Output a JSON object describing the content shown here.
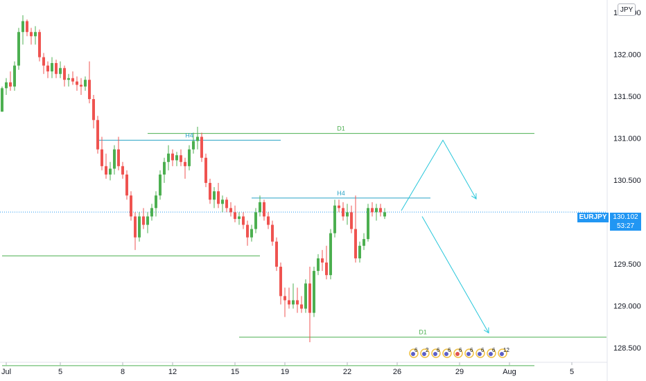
{
  "chart_data": {
    "type": "candlestick",
    "symbol": "EURJPY",
    "currency": "JPY",
    "last_price": "130.102",
    "countdown": "53:27",
    "y_axis": {
      "range": [
        128.24,
        132.78
      ],
      "ticks": [
        "132.500",
        "132.000",
        "131.500",
        "131.000",
        "130.500",
        "130.000",
        "129.500",
        "129.000",
        "128.500"
      ]
    },
    "x_axis": {
      "ticks": [
        {
          "label": "Jul",
          "bar": 1
        },
        {
          "label": "5",
          "bar": 14
        },
        {
          "label": "8",
          "bar": 29
        },
        {
          "label": "12",
          "bar": 41
        },
        {
          "label": "15",
          "bar": 56
        },
        {
          "label": "19",
          "bar": 68
        },
        {
          "label": "22",
          "bar": 83
        },
        {
          "label": "26",
          "bar": 95
        },
        {
          "label": "29",
          "bar": 110
        },
        {
          "label": "Aug",
          "bar": 122
        },
        {
          "label": "5",
          "bar": 137
        }
      ]
    },
    "levels": [
      {
        "label": "D1",
        "price": 131.04,
        "from_bar": 35,
        "to_bar": 128,
        "color": "#4caf50"
      },
      {
        "label": "H4",
        "price": 130.96,
        "from_bar": 23,
        "to_bar": 67,
        "color": "#26a2c5"
      },
      {
        "label": "",
        "price": 129.58,
        "from_bar": 0,
        "to_bar": 62,
        "color": "#4caf50"
      },
      {
        "label": "H4",
        "price": 130.27,
        "from_bar": 60,
        "to_bar": 103,
        "color": "#26a2c5"
      },
      {
        "label": "D1",
        "price": 128.61,
        "from_bar": 57,
        "to_bar": 152,
        "color": "#4caf50"
      },
      {
        "label": "",
        "price": 128.27,
        "from_bar": 0,
        "to_bar": 128,
        "color": "#4caf50"
      }
    ],
    "scenarios": [
      {
        "path": [
          [
            96,
            130.12
          ],
          [
            106,
            130.96
          ],
          [
            114,
            130.26
          ]
        ],
        "color": "#26c6da"
      },
      {
        "path": [
          [
            101,
            130.05
          ],
          [
            117,
            128.66
          ]
        ],
        "color": "#26c6da"
      }
    ],
    "candles": [
      [
        131.3,
        131.6,
        131.3,
        131.58
      ],
      [
        131.58,
        131.7,
        131.5,
        131.65
      ],
      [
        131.65,
        131.78,
        131.55,
        131.6
      ],
      [
        131.6,
        131.9,
        131.55,
        131.85
      ],
      [
        131.85,
        132.3,
        131.8,
        132.25
      ],
      [
        132.25,
        132.45,
        132.1,
        132.38
      ],
      [
        132.38,
        132.4,
        132.2,
        132.25
      ],
      [
        132.25,
        132.3,
        132.1,
        132.2
      ],
      [
        132.2,
        132.32,
        132.1,
        132.25
      ],
      [
        132.25,
        132.28,
        131.9,
        131.95
      ],
      [
        131.95,
        132.0,
        131.75,
        131.85
      ],
      [
        131.85,
        131.9,
        131.7,
        131.78
      ],
      [
        131.78,
        131.95,
        131.7,
        131.88
      ],
      [
        131.88,
        131.92,
        131.7,
        131.75
      ],
      [
        131.75,
        131.9,
        131.7,
        131.82
      ],
      [
        131.82,
        131.85,
        131.6,
        131.68
      ],
      [
        131.68,
        131.75,
        131.6,
        131.7
      ],
      [
        131.7,
        131.78,
        131.62,
        131.66
      ],
      [
        131.66,
        131.72,
        131.55,
        131.62
      ],
      [
        131.62,
        131.7,
        131.5,
        131.6
      ],
      [
        131.6,
        131.72,
        131.55,
        131.68
      ],
      [
        131.68,
        131.9,
        131.4,
        131.45
      ],
      [
        131.45,
        131.5,
        131.1,
        131.2
      ],
      [
        131.2,
        131.25,
        130.8,
        130.85
      ],
      [
        130.85,
        131.0,
        130.6,
        130.65
      ],
      [
        130.65,
        130.8,
        130.5,
        130.55
      ],
      [
        130.55,
        130.7,
        130.48,
        130.62
      ],
      [
        130.62,
        130.9,
        130.55,
        130.85
      ],
      [
        130.85,
        131.0,
        130.6,
        130.65
      ],
      [
        130.65,
        130.7,
        130.5,
        130.55
      ],
      [
        130.55,
        130.6,
        130.25,
        130.3
      ],
      [
        130.3,
        130.35,
        130.0,
        130.05
      ],
      [
        130.05,
        130.1,
        129.65,
        129.8
      ],
      [
        129.8,
        130.1,
        129.75,
        130.05
      ],
      [
        130.05,
        130.15,
        129.9,
        129.95
      ],
      [
        129.95,
        130.1,
        129.85,
        130.05
      ],
      [
        130.05,
        130.2,
        130.0,
        130.15
      ],
      [
        130.15,
        130.35,
        130.05,
        130.3
      ],
      [
        130.3,
        130.6,
        130.25,
        130.55
      ],
      [
        130.55,
        130.75,
        130.45,
        130.7
      ],
      [
        130.7,
        130.9,
        130.6,
        130.8
      ],
      [
        130.8,
        130.85,
        130.65,
        130.72
      ],
      [
        130.72,
        130.82,
        130.65,
        130.78
      ],
      [
        130.78,
        130.85,
        130.65,
        130.7
      ],
      [
        130.7,
        130.75,
        130.5,
        130.65
      ],
      [
        130.65,
        130.9,
        130.6,
        130.85
      ],
      [
        130.85,
        131.05,
        130.8,
        130.95
      ],
      [
        130.95,
        131.12,
        130.85,
        131.0
      ],
      [
        131.0,
        131.05,
        130.7,
        130.75
      ],
      [
        130.75,
        130.8,
        130.4,
        130.45
      ],
      [
        130.45,
        130.5,
        130.2,
        130.25
      ],
      [
        130.25,
        130.4,
        130.15,
        130.35
      ],
      [
        130.35,
        130.45,
        130.15,
        130.2
      ],
      [
        130.2,
        130.3,
        130.1,
        130.25
      ],
      [
        130.25,
        130.28,
        130.1,
        130.15
      ],
      [
        130.15,
        130.22,
        130.05,
        130.1
      ],
      [
        130.1,
        130.18,
        129.98,
        130.02
      ],
      [
        130.02,
        130.1,
        129.95,
        130.05
      ],
      [
        130.05,
        130.1,
        129.9,
        129.95
      ],
      [
        129.95,
        130.0,
        129.7,
        129.8
      ],
      [
        129.8,
        129.95,
        129.75,
        129.9
      ],
      [
        129.9,
        130.15,
        129.85,
        130.1
      ],
      [
        130.1,
        130.3,
        130.05,
        130.22
      ],
      [
        130.22,
        130.25,
        130.0,
        130.05
      ],
      [
        130.05,
        130.1,
        129.9,
        129.95
      ],
      [
        129.95,
        130.0,
        129.7,
        129.75
      ],
      [
        129.75,
        129.8,
        129.4,
        129.45
      ],
      [
        129.45,
        129.5,
        129.0,
        129.1
      ],
      [
        129.1,
        129.2,
        128.85,
        129.05
      ],
      [
        129.05,
        129.2,
        128.95,
        129.0
      ],
      [
        129.0,
        129.25,
        128.95,
        129.05
      ],
      [
        129.05,
        129.2,
        128.9,
        129.0
      ],
      [
        129.0,
        129.1,
        128.9,
        128.95
      ],
      [
        128.95,
        129.3,
        128.9,
        129.25
      ],
      [
        129.25,
        129.45,
        128.55,
        128.9
      ],
      [
        128.9,
        129.45,
        128.85,
        129.4
      ],
      [
        129.4,
        129.6,
        129.35,
        129.55
      ],
      [
        129.55,
        129.65,
        129.4,
        129.5
      ],
      [
        129.5,
        129.7,
        129.3,
        129.35
      ],
      [
        129.35,
        129.9,
        129.3,
        129.85
      ],
      [
        129.85,
        130.25,
        129.8,
        130.18
      ],
      [
        130.18,
        130.25,
        130.1,
        130.15
      ],
      [
        130.15,
        130.22,
        130.0,
        130.05
      ],
      [
        130.05,
        130.2,
        129.95,
        130.1
      ],
      [
        130.1,
        130.18,
        129.85,
        129.9
      ],
      [
        129.9,
        130.3,
        129.5,
        129.55
      ],
      [
        129.55,
        129.75,
        129.5,
        129.7
      ],
      [
        129.7,
        129.85,
        129.65,
        129.78
      ],
      [
        129.78,
        130.2,
        129.75,
        130.15
      ],
      [
        130.15,
        130.22,
        130.05,
        130.1
      ],
      [
        130.1,
        130.2,
        130.0,
        130.15
      ],
      [
        130.15,
        130.2,
        130.05,
        130.1
      ],
      [
        130.05,
        130.15,
        130.02,
        130.1
      ]
    ],
    "grid": false
  },
  "icons": [
    "event-flag-icon"
  ],
  "event_badges": [
    "6",
    "2",
    "6",
    "6",
    "6",
    "6",
    "6",
    "6",
    "12"
  ]
}
